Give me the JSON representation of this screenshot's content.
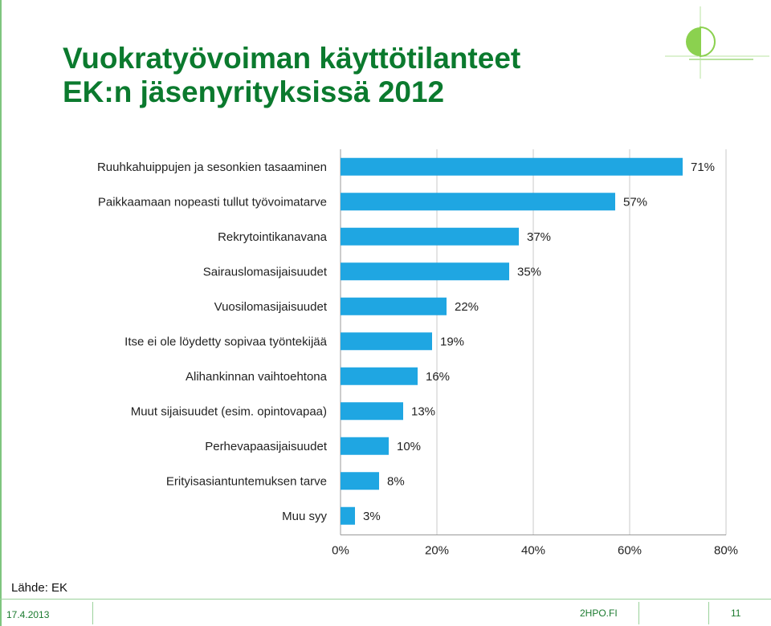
{
  "slide": {
    "title_line1": "Vuokratyövoiman käyttötilanteet",
    "title_line2": "EK:n jäsenyrityksissä 2012",
    "source": "Lähde: EK",
    "date": "17.4.2013",
    "site": "2HPO.FI",
    "page": "11"
  },
  "colors": {
    "bar": "#1fa6e2",
    "title": "#0b7a2e",
    "accent": "#8bd14f"
  },
  "chart_data": {
    "type": "bar",
    "orientation": "horizontal",
    "categories": [
      "Ruuhkahuippujen ja sesonkien tasaaminen",
      "Paikkaamaan nopeasti tullut työvoimatarve",
      "Rekrytointikanavana",
      "Sairauslomasijaisuudet",
      "Vuosilomasijaisuudet",
      "Itse ei ole löydetty sopivaa työntekijää",
      "Alihankinnan vaihtoehtona",
      "Muut sijaisuudet (esim. opintovapaa)",
      "Perhevapaasijaisuudet",
      "Erityisasiantuntemuksen tarve",
      "Muu syy"
    ],
    "values": [
      71,
      57,
      37,
      35,
      22,
      19,
      16,
      13,
      10,
      8,
      3
    ],
    "value_labels": [
      "71%",
      "57%",
      "37%",
      "35%",
      "22%",
      "19%",
      "16%",
      "13%",
      "10%",
      "8%",
      "3%"
    ],
    "xlim": [
      0,
      80
    ],
    "ticks": [
      "0%",
      "20%",
      "40%",
      "60%",
      "80%"
    ],
    "grid": true
  }
}
